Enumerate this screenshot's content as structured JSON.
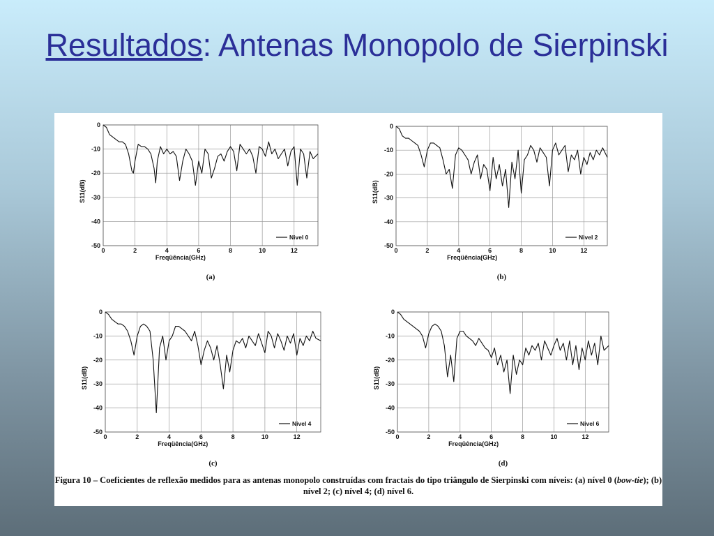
{
  "slide": {
    "title_underlined": "Resultados",
    "title_rest": ": Antenas Monopolo de Sierpinski"
  },
  "colors": {
    "title": "#2b2f98",
    "trace": "#111111",
    "grid": "#9a9a9a",
    "panel": "#ffffff"
  },
  "caption": {
    "lead": "Figura 10 – Coeficientes de reflexão medidos para as antenas monopolo construídas com fractais do tipo triângulo de Sierpinski com níveis: (a) nível 0 (",
    "italic": "bow-tie",
    "tail": "); (b) nível 2; (c) nível 4; (d) nível 6."
  },
  "chart_data": [
    {
      "type": "line",
      "panel_label": "(a)",
      "xlabel": "Freqüência(GHz)",
      "ylabel": "S11(dB)",
      "xlim": [
        0,
        13.5
      ],
      "ylim": [
        -50,
        0
      ],
      "xticks": [
        0,
        2,
        4,
        6,
        8,
        10,
        12
      ],
      "yticks": [
        0,
        -10,
        -20,
        -30,
        -40,
        -50
      ],
      "grid": true,
      "legend_position": "bottom-right",
      "series": [
        {
          "name": "Nivel 0",
          "x": [
            0,
            0.2,
            0.4,
            0.6,
            0.8,
            1.0,
            1.2,
            1.4,
            1.6,
            1.8,
            1.9,
            2.0,
            2.2,
            2.4,
            2.6,
            2.8,
            3.0,
            3.2,
            3.3,
            3.4,
            3.6,
            3.8,
            4.0,
            4.2,
            4.4,
            4.6,
            4.8,
            5.0,
            5.2,
            5.4,
            5.6,
            5.8,
            6.0,
            6.2,
            6.4,
            6.6,
            6.8,
            7.0,
            7.2,
            7.4,
            7.6,
            7.8,
            8.0,
            8.2,
            8.4,
            8.6,
            8.8,
            9.0,
            9.2,
            9.4,
            9.6,
            9.8,
            10.0,
            10.2,
            10.4,
            10.6,
            10.8,
            11.0,
            11.2,
            11.4,
            11.6,
            11.8,
            12.0,
            12.2,
            12.4,
            12.6,
            12.8,
            13.0,
            13.2,
            13.5
          ],
          "y": [
            0,
            -1,
            -4,
            -5,
            -6,
            -7,
            -7,
            -8,
            -12,
            -19,
            -20,
            -15,
            -8,
            -9,
            -9,
            -10,
            -12,
            -18,
            -24,
            -15,
            -9,
            -12,
            -10,
            -12,
            -11,
            -13,
            -23,
            -15,
            -10,
            -12,
            -15,
            -25,
            -15,
            -20,
            -10,
            -12,
            -22,
            -18,
            -13,
            -12,
            -15,
            -11,
            -9,
            -11,
            -19,
            -8,
            -10,
            -12,
            -10,
            -13,
            -20,
            -9,
            -10,
            -13,
            -7,
            -12,
            -10,
            -14,
            -12,
            -10,
            -17,
            -11,
            -9,
            -25,
            -10,
            -12,
            -22,
            -11,
            -14,
            -12
          ]
        }
      ]
    },
    {
      "type": "line",
      "panel_label": "(b)",
      "xlabel": "Freqüência(GHz)",
      "ylabel": "S11(dB)",
      "xlim": [
        0,
        13.5
      ],
      "ylim": [
        -50,
        0
      ],
      "xticks": [
        0,
        2,
        4,
        6,
        8,
        10,
        12
      ],
      "yticks": [
        0,
        -10,
        -20,
        -30,
        -40,
        -50
      ],
      "grid": true,
      "legend_position": "bottom-right",
      "series": [
        {
          "name": "Nivel 2",
          "x": [
            0,
            0.2,
            0.4,
            0.6,
            0.8,
            1.0,
            1.2,
            1.4,
            1.6,
            1.8,
            2.0,
            2.2,
            2.4,
            2.6,
            2.8,
            3.0,
            3.2,
            3.4,
            3.6,
            3.8,
            4.0,
            4.2,
            4.4,
            4.6,
            4.8,
            5.0,
            5.2,
            5.4,
            5.6,
            5.8,
            6.0,
            6.2,
            6.4,
            6.6,
            6.8,
            7.0,
            7.2,
            7.4,
            7.6,
            7.8,
            8.0,
            8.2,
            8.4,
            8.6,
            8.8,
            9.0,
            9.2,
            9.4,
            9.6,
            9.8,
            10.0,
            10.2,
            10.4,
            10.6,
            10.8,
            11.0,
            11.2,
            11.4,
            11.6,
            11.8,
            12.0,
            12.2,
            12.4,
            12.6,
            12.8,
            13.0,
            13.2,
            13.5
          ],
          "y": [
            0,
            -1,
            -4,
            -5,
            -5,
            -6,
            -7,
            -8,
            -12,
            -17,
            -10,
            -7,
            -7,
            -8,
            -9,
            -14,
            -20,
            -18,
            -26,
            -12,
            -9,
            -10,
            -12,
            -14,
            -20,
            -15,
            -12,
            -22,
            -16,
            -18,
            -27,
            -13,
            -22,
            -16,
            -25,
            -18,
            -34,
            -15,
            -22,
            -10,
            -28,
            -14,
            -12,
            -8,
            -10,
            -15,
            -9,
            -11,
            -13,
            -25,
            -10,
            -7,
            -12,
            -10,
            -8,
            -19,
            -12,
            -14,
            -10,
            -20,
            -13,
            -16,
            -11,
            -14,
            -10,
            -12,
            -9,
            -13
          ]
        }
      ]
    },
    {
      "type": "line",
      "panel_label": "(c)",
      "xlabel": "Freqüência(GHz)",
      "ylabel": "S11(dB)",
      "xlim": [
        0,
        13.5
      ],
      "ylim": [
        -50,
        0
      ],
      "xticks": [
        0,
        2,
        4,
        6,
        8,
        10,
        12
      ],
      "yticks": [
        0,
        -10,
        -20,
        -30,
        -40,
        -50
      ],
      "grid": true,
      "legend_position": "bottom-right",
      "series": [
        {
          "name": "Nivel 4",
          "x": [
            0,
            0.2,
            0.4,
            0.6,
            0.8,
            1.0,
            1.2,
            1.4,
            1.6,
            1.8,
            2.0,
            2.2,
            2.4,
            2.6,
            2.8,
            3.0,
            3.2,
            3.4,
            3.6,
            3.8,
            4.0,
            4.2,
            4.4,
            4.6,
            4.8,
            5.0,
            5.2,
            5.4,
            5.6,
            5.8,
            6.0,
            6.2,
            6.4,
            6.6,
            6.8,
            7.0,
            7.2,
            7.4,
            7.6,
            7.8,
            8.0,
            8.2,
            8.4,
            8.6,
            8.8,
            9.0,
            9.2,
            9.4,
            9.6,
            9.8,
            10.0,
            10.2,
            10.4,
            10.6,
            10.8,
            11.0,
            11.2,
            11.4,
            11.6,
            11.8,
            12.0,
            12.2,
            12.4,
            12.6,
            12.8,
            13.0,
            13.2,
            13.5
          ],
          "y": [
            0,
            -1,
            -3,
            -4,
            -5,
            -5,
            -6,
            -8,
            -12,
            -18,
            -10,
            -6,
            -5,
            -6,
            -8,
            -20,
            -42,
            -15,
            -10,
            -20,
            -12,
            -10,
            -6,
            -6,
            -7,
            -8,
            -10,
            -12,
            -8,
            -14,
            -22,
            -16,
            -12,
            -15,
            -20,
            -14,
            -22,
            -32,
            -18,
            -25,
            -16,
            -12,
            -13,
            -11,
            -15,
            -10,
            -12,
            -14,
            -9,
            -13,
            -17,
            -8,
            -10,
            -15,
            -9,
            -12,
            -16,
            -10,
            -13,
            -9,
            -18,
            -11,
            -14,
            -10,
            -12,
            -8,
            -11,
            -12
          ]
        }
      ]
    },
    {
      "type": "line",
      "panel_label": "(d)",
      "xlabel": "Freqüência(GHz)",
      "ylabel": "S11(dB)",
      "xlim": [
        0,
        13.5
      ],
      "ylim": [
        -50,
        0
      ],
      "xticks": [
        0,
        2,
        4,
        6,
        8,
        10,
        12
      ],
      "yticks": [
        0,
        -10,
        -20,
        -30,
        -40,
        -50
      ],
      "grid": true,
      "legend_position": "bottom-right",
      "series": [
        {
          "name": "Nivel 6",
          "x": [
            0,
            0.2,
            0.4,
            0.6,
            0.8,
            1.0,
            1.2,
            1.4,
            1.6,
            1.8,
            2.0,
            2.2,
            2.4,
            2.6,
            2.8,
            3.0,
            3.2,
            3.4,
            3.6,
            3.8,
            4.0,
            4.2,
            4.4,
            4.6,
            4.8,
            5.0,
            5.2,
            5.4,
            5.6,
            5.8,
            6.0,
            6.2,
            6.4,
            6.6,
            6.8,
            7.0,
            7.2,
            7.4,
            7.6,
            7.8,
            8.0,
            8.2,
            8.4,
            8.6,
            8.8,
            9.0,
            9.2,
            9.4,
            9.6,
            9.8,
            10.0,
            10.2,
            10.4,
            10.6,
            10.8,
            11.0,
            11.2,
            11.4,
            11.6,
            11.8,
            12.0,
            12.2,
            12.4,
            12.6,
            12.8,
            13.0,
            13.2,
            13.5
          ],
          "y": [
            0,
            -1,
            -3,
            -4,
            -5,
            -6,
            -7,
            -8,
            -10,
            -15,
            -9,
            -6,
            -5,
            -6,
            -8,
            -14,
            -27,
            -18,
            -29,
            -11,
            -8,
            -8,
            -10,
            -11,
            -12,
            -14,
            -11,
            -13,
            -15,
            -16,
            -19,
            -15,
            -22,
            -18,
            -25,
            -20,
            -34,
            -18,
            -26,
            -20,
            -22,
            -15,
            -18,
            -14,
            -16,
            -13,
            -20,
            -12,
            -15,
            -18,
            -14,
            -11,
            -16,
            -13,
            -20,
            -12,
            -22,
            -14,
            -24,
            -15,
            -20,
            -12,
            -18,
            -13,
            -22,
            -10,
            -16,
            -14
          ]
        }
      ]
    }
  ]
}
